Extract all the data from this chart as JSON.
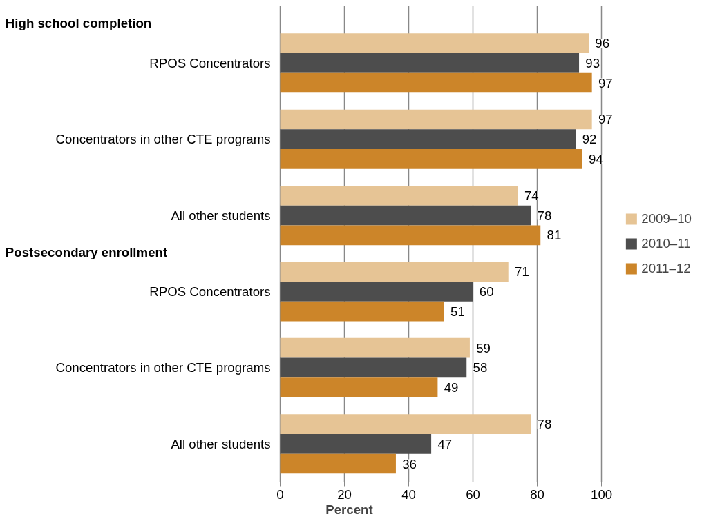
{
  "chart_data": {
    "type": "bar",
    "orientation": "horizontal",
    "categories": [
      "RPOS Concentrators",
      "Concentrators in other CTE programs",
      "All other students",
      "RPOS Concentrators",
      "Concentrators in other CTE programs",
      "All other students"
    ],
    "series": [
      {
        "name": "2009–10",
        "color": "#e6c495",
        "values": [
          96,
          97,
          74,
          71,
          59,
          78
        ]
      },
      {
        "name": "2010–11",
        "color": "#4d4d4d",
        "values": [
          93,
          92,
          78,
          60,
          58,
          47
        ]
      },
      {
        "name": "2011–12",
        "color": "#cc8529",
        "values": [
          97,
          94,
          81,
          51,
          49,
          36
        ]
      }
    ],
    "annotations": [
      "High school completion",
      "Postsecondary enrollment"
    ],
    "xlabel": "Percent",
    "xlim": [
      0,
      100
    ],
    "xticks": [
      0,
      20,
      40,
      60,
      80,
      100
    ],
    "grid": "x",
    "legend": "right",
    "data_labels": true
  }
}
